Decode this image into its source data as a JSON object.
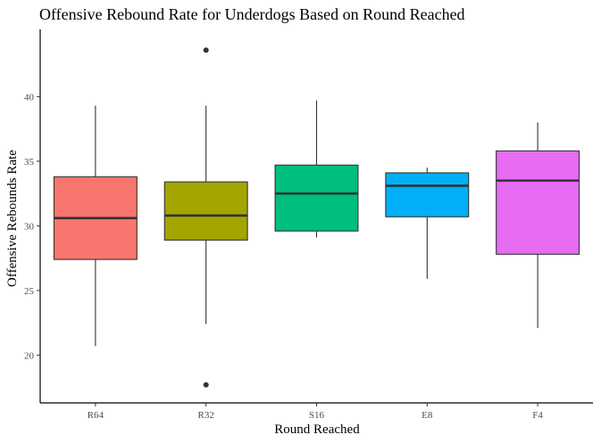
{
  "chart_data": {
    "type": "boxplot",
    "title": "Offensive Rebound Rate for Underdogs Based on Round Reached",
    "xlabel": "Round Reached",
    "ylabel": "Offensive Rebounds Rate",
    "ylim": [
      16.3,
      45.2
    ],
    "y_ticks": [
      20,
      25,
      30,
      35,
      40
    ],
    "grid": false,
    "legend": "none",
    "categories": [
      "R64",
      "R32",
      "S16",
      "E8",
      "F4"
    ],
    "boxes": [
      {
        "category": "R64",
        "min": 20.7,
        "q1": 27.4,
        "median": 30.6,
        "q3": 33.8,
        "max": 39.3,
        "outliers": [],
        "color": "#F8766D"
      },
      {
        "category": "R32",
        "min": 22.4,
        "q1": 28.9,
        "median": 30.8,
        "q3": 33.4,
        "max": 39.3,
        "outliers": [
          43.6,
          17.7
        ],
        "color": "#A3A500"
      },
      {
        "category": "S16",
        "min": 29.1,
        "q1": 29.6,
        "median": 32.5,
        "q3": 34.7,
        "max": 39.7,
        "outliers": [],
        "color": "#00BF7D"
      },
      {
        "category": "E8",
        "min": 25.9,
        "q1": 30.7,
        "median": 33.1,
        "q3": 34.1,
        "max": 34.5,
        "outliers": [],
        "color": "#00B0F6"
      },
      {
        "category": "F4",
        "min": 22.1,
        "q1": 27.8,
        "median": 33.5,
        "q3": 35.8,
        "max": 38.0,
        "outliers": [],
        "color": "#E76BF3"
      }
    ]
  }
}
